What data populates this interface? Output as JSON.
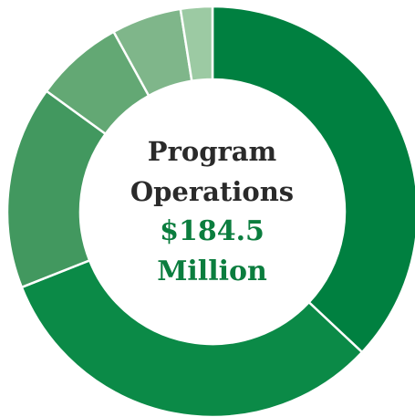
{
  "chart_data": {
    "type": "pie",
    "style": "donut",
    "center_text": {
      "line1": "Program",
      "line2": "Operations",
      "amount": "$184.5",
      "unit": "Million"
    },
    "slices": [
      {
        "percent": 37.0,
        "color": "#008040"
      },
      {
        "percent": 32.0,
        "color": "#0b8a47"
      },
      {
        "percent": 16.0,
        "color": "#42985f"
      },
      {
        "percent": 7.0,
        "color": "#63a874"
      },
      {
        "percent": 5.5,
        "color": "#7fb68a"
      },
      {
        "percent": 2.5,
        "color": "#9ccaa3"
      }
    ],
    "separator_color": "#ffffff"
  }
}
